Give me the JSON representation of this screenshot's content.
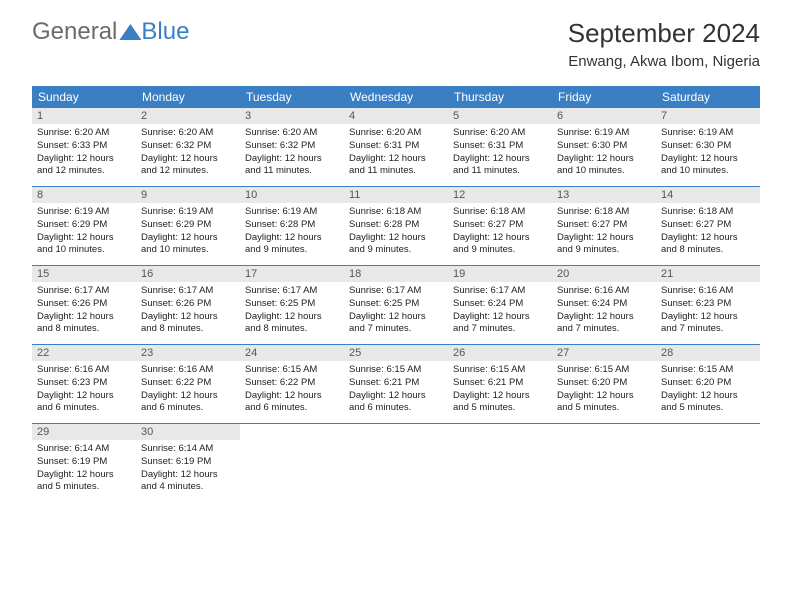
{
  "logo": {
    "word1": "General",
    "word2": "Blue"
  },
  "title": "September 2024",
  "location": "Enwang, Akwa Ibom, Nigeria",
  "colors": {
    "accent": "#3a7fc4",
    "day_header_bg": "#e8e8e8",
    "text": "#222222",
    "logo_gray": "#6b6b6b",
    "background": "#ffffff"
  },
  "weekdays": [
    "Sunday",
    "Monday",
    "Tuesday",
    "Wednesday",
    "Thursday",
    "Friday",
    "Saturday"
  ],
  "weeks": [
    [
      {
        "n": "1",
        "sunrise": "6:20 AM",
        "sunset": "6:33 PM",
        "dl": "12 hours and 12 minutes."
      },
      {
        "n": "2",
        "sunrise": "6:20 AM",
        "sunset": "6:32 PM",
        "dl": "12 hours and 12 minutes."
      },
      {
        "n": "3",
        "sunrise": "6:20 AM",
        "sunset": "6:32 PM",
        "dl": "12 hours and 11 minutes."
      },
      {
        "n": "4",
        "sunrise": "6:20 AM",
        "sunset": "6:31 PM",
        "dl": "12 hours and 11 minutes."
      },
      {
        "n": "5",
        "sunrise": "6:20 AM",
        "sunset": "6:31 PM",
        "dl": "12 hours and 11 minutes."
      },
      {
        "n": "6",
        "sunrise": "6:19 AM",
        "sunset": "6:30 PM",
        "dl": "12 hours and 10 minutes."
      },
      {
        "n": "7",
        "sunrise": "6:19 AM",
        "sunset": "6:30 PM",
        "dl": "12 hours and 10 minutes."
      }
    ],
    [
      {
        "n": "8",
        "sunrise": "6:19 AM",
        "sunset": "6:29 PM",
        "dl": "12 hours and 10 minutes."
      },
      {
        "n": "9",
        "sunrise": "6:19 AM",
        "sunset": "6:29 PM",
        "dl": "12 hours and 10 minutes."
      },
      {
        "n": "10",
        "sunrise": "6:19 AM",
        "sunset": "6:28 PM",
        "dl": "12 hours and 9 minutes."
      },
      {
        "n": "11",
        "sunrise": "6:18 AM",
        "sunset": "6:28 PM",
        "dl": "12 hours and 9 minutes."
      },
      {
        "n": "12",
        "sunrise": "6:18 AM",
        "sunset": "6:27 PM",
        "dl": "12 hours and 9 minutes."
      },
      {
        "n": "13",
        "sunrise": "6:18 AM",
        "sunset": "6:27 PM",
        "dl": "12 hours and 9 minutes."
      },
      {
        "n": "14",
        "sunrise": "6:18 AM",
        "sunset": "6:27 PM",
        "dl": "12 hours and 8 minutes."
      }
    ],
    [
      {
        "n": "15",
        "sunrise": "6:17 AM",
        "sunset": "6:26 PM",
        "dl": "12 hours and 8 minutes."
      },
      {
        "n": "16",
        "sunrise": "6:17 AM",
        "sunset": "6:26 PM",
        "dl": "12 hours and 8 minutes."
      },
      {
        "n": "17",
        "sunrise": "6:17 AM",
        "sunset": "6:25 PM",
        "dl": "12 hours and 8 minutes."
      },
      {
        "n": "18",
        "sunrise": "6:17 AM",
        "sunset": "6:25 PM",
        "dl": "12 hours and 7 minutes."
      },
      {
        "n": "19",
        "sunrise": "6:17 AM",
        "sunset": "6:24 PM",
        "dl": "12 hours and 7 minutes."
      },
      {
        "n": "20",
        "sunrise": "6:16 AM",
        "sunset": "6:24 PM",
        "dl": "12 hours and 7 minutes."
      },
      {
        "n": "21",
        "sunrise": "6:16 AM",
        "sunset": "6:23 PM",
        "dl": "12 hours and 7 minutes."
      }
    ],
    [
      {
        "n": "22",
        "sunrise": "6:16 AM",
        "sunset": "6:23 PM",
        "dl": "12 hours and 6 minutes."
      },
      {
        "n": "23",
        "sunrise": "6:16 AM",
        "sunset": "6:22 PM",
        "dl": "12 hours and 6 minutes."
      },
      {
        "n": "24",
        "sunrise": "6:15 AM",
        "sunset": "6:22 PM",
        "dl": "12 hours and 6 minutes."
      },
      {
        "n": "25",
        "sunrise": "6:15 AM",
        "sunset": "6:21 PM",
        "dl": "12 hours and 6 minutes."
      },
      {
        "n": "26",
        "sunrise": "6:15 AM",
        "sunset": "6:21 PM",
        "dl": "12 hours and 5 minutes."
      },
      {
        "n": "27",
        "sunrise": "6:15 AM",
        "sunset": "6:20 PM",
        "dl": "12 hours and 5 minutes."
      },
      {
        "n": "28",
        "sunrise": "6:15 AM",
        "sunset": "6:20 PM",
        "dl": "12 hours and 5 minutes."
      }
    ],
    [
      {
        "n": "29",
        "sunrise": "6:14 AM",
        "sunset": "6:19 PM",
        "dl": "12 hours and 5 minutes."
      },
      {
        "n": "30",
        "sunrise": "6:14 AM",
        "sunset": "6:19 PM",
        "dl": "12 hours and 4 minutes."
      },
      null,
      null,
      null,
      null,
      null
    ]
  ],
  "labels": {
    "sunrise": "Sunrise:",
    "sunset": "Sunset:",
    "daylight": "Daylight:"
  }
}
